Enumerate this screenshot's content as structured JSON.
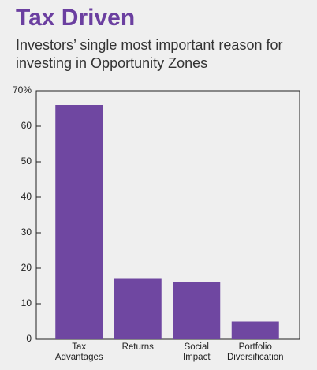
{
  "chart_data": {
    "type": "bar",
    "title": "Tax Driven",
    "subtitle": "Investors’ single most important reason for investing in Opportunity Zones",
    "categories": [
      "Tax Advantages",
      "Returns",
      "Social Impact",
      "Portfolio Diversification"
    ],
    "values": [
      66,
      17,
      16,
      5
    ],
    "color": "#6f47a1",
    "ylim": [
      0,
      70
    ],
    "yticks": [
      0,
      10,
      20,
      30,
      40,
      50,
      60,
      {
        "value": 70,
        "label": "70%"
      }
    ]
  }
}
